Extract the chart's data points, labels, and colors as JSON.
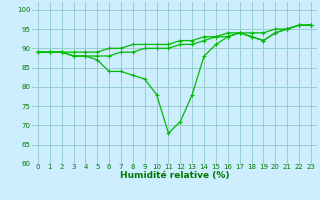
{
  "line1_x": [
    0,
    1,
    2,
    3,
    4,
    5,
    6,
    7,
    8,
    9,
    10,
    11,
    12,
    13,
    14,
    15,
    16,
    17,
    18,
    19,
    20,
    21,
    22,
    23
  ],
  "line1_y": [
    89,
    89,
    89,
    89,
    89,
    89,
    90,
    90,
    91,
    91,
    91,
    91,
    92,
    92,
    93,
    93,
    94,
    94,
    94,
    94,
    95,
    95,
    96,
    96
  ],
  "line2_x": [
    0,
    1,
    2,
    3,
    4,
    5,
    6,
    7,
    8,
    9,
    10,
    11,
    12,
    13,
    14,
    15,
    16,
    17,
    18,
    19,
    20,
    21,
    22,
    23
  ],
  "line2_y": [
    89,
    89,
    89,
    88,
    88,
    87,
    84,
    84,
    83,
    82,
    78,
    68,
    71,
    78,
    88,
    91,
    93,
    94,
    93,
    92,
    94,
    95,
    96,
    96
  ],
  "line3_x": [
    0,
    1,
    2,
    3,
    4,
    5,
    6,
    7,
    8,
    9,
    10,
    11,
    12,
    13,
    14,
    15,
    16,
    17,
    18,
    19,
    20,
    21,
    22,
    23
  ],
  "line3_y": [
    89,
    89,
    89,
    88,
    88,
    88,
    88,
    89,
    89,
    90,
    90,
    90,
    91,
    91,
    92,
    93,
    93,
    94,
    93,
    92,
    94,
    95,
    96,
    96
  ],
  "line_color": "#00bb00",
  "background_color": "#cceeff",
  "grid_color": "#99cccc",
  "xlabel": "Humidité relative (%)",
  "xlabel_color": "#007700",
  "xlabel_fontsize": 6.5,
  "tick_color": "#007700",
  "tick_fontsize": 5.0,
  "xlim": [
    -0.5,
    23.5
  ],
  "ylim": [
    60,
    102
  ],
  "yticks": [
    60,
    65,
    70,
    75,
    80,
    85,
    90,
    95,
    100
  ],
  "xticks": [
    0,
    1,
    2,
    3,
    4,
    5,
    6,
    7,
    8,
    9,
    10,
    11,
    12,
    13,
    14,
    15,
    16,
    17,
    18,
    19,
    20,
    21,
    22,
    23
  ]
}
